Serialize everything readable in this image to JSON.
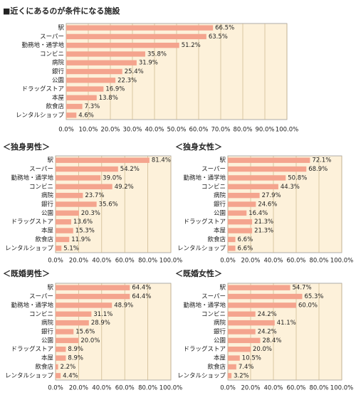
{
  "chart_data": [
    {
      "type": "bar",
      "orientation": "horizontal",
      "title": "■近くにあるのが条件になる施設",
      "color": "#f4a48e",
      "categories": [
        "駅",
        "スーパー",
        "勤務地・通学地",
        "コンビニ",
        "病院",
        "銀行",
        "公園",
        "ドラッグストア",
        "本屋",
        "飲食店",
        "レンタルショップ"
      ],
      "values": [
        66.5,
        63.5,
        51.2,
        35.8,
        31.9,
        25.4,
        22.3,
        16.9,
        13.8,
        7.3,
        4.6
      ],
      "value_labels": [
        "66.5%",
        "63.5%",
        "51.2%",
        "35.8%",
        "31.9%",
        "25.4%",
        "22.3%",
        "16.9%",
        "13.8%",
        "7.3%",
        "4.6%"
      ],
      "xlim": [
        0,
        100
      ],
      "xticks": [
        {
          "value": 0,
          "label": "0.0%"
        },
        {
          "value": 10,
          "label": "10.0%"
        },
        {
          "value": 20,
          "label": "20.0%"
        },
        {
          "value": 30,
          "label": "30.0%"
        },
        {
          "value": 40,
          "label": "40.0%"
        },
        {
          "value": 50,
          "label": "50.0%"
        },
        {
          "value": 60,
          "label": "60.0%"
        },
        {
          "value": 70,
          "label": "70.0%"
        },
        {
          "value": 80,
          "label": "80.0%"
        },
        {
          "value": 90,
          "label": "90.0%"
        },
        {
          "value": 100,
          "label": "100.0%"
        }
      ],
      "grid": true
    },
    {
      "type": "bar",
      "orientation": "horizontal",
      "title": "＜独身男性＞",
      "color": "#f4a48e",
      "categories": [
        "駅",
        "スーパー",
        "勤務地・通学地",
        "コンビニ",
        "病院",
        "銀行",
        "公園",
        "ドラッグストア",
        "本屋",
        "飲食店",
        "レンタルショップ"
      ],
      "values": [
        81.4,
        54.2,
        39.0,
        49.2,
        23.7,
        35.6,
        20.3,
        13.6,
        15.3,
        11.9,
        5.1
      ],
      "value_labels": [
        "81.4%",
        "54.2%",
        "39.0%",
        "49.2%",
        "23.7%",
        "35.6%",
        "20.3%",
        "13.6%",
        "15.3%",
        "11.9%",
        "5.1%"
      ],
      "xlim": [
        0,
        100
      ],
      "xticks": [
        {
          "value": 0,
          "label": "0.0%"
        },
        {
          "value": 20,
          "label": "20.0%"
        },
        {
          "value": 40,
          "label": "40.0%"
        },
        {
          "value": 60,
          "label": "60.0%"
        },
        {
          "value": 80,
          "label": "80.0%"
        },
        {
          "value": 100,
          "label": "100.0%"
        }
      ],
      "grid": true
    },
    {
      "type": "bar",
      "orientation": "horizontal",
      "title": "＜独身女性＞",
      "color": "#f4a48e",
      "categories": [
        "駅",
        "スーパー",
        "勤務地・通学地",
        "コンビニ",
        "病院",
        "銀行",
        "公園",
        "ドラッグストア",
        "本屋",
        "飲食店",
        "レンタルショップ"
      ],
      "values": [
        72.1,
        68.9,
        50.8,
        44.3,
        27.9,
        24.6,
        16.4,
        21.3,
        21.3,
        6.6,
        6.6
      ],
      "value_labels": [
        "72.1%",
        "68.9%",
        "50.8%",
        "44.3%",
        "27.9%",
        "24.6%",
        "16.4%",
        "21.3%",
        "21.3%",
        "6.6%",
        "6.6%"
      ],
      "xlim": [
        0,
        100
      ],
      "xticks": [
        {
          "value": 0,
          "label": "0.0%"
        },
        {
          "value": 20,
          "label": "20.0%"
        },
        {
          "value": 40,
          "label": "40.0%"
        },
        {
          "value": 60,
          "label": "60.0%"
        },
        {
          "value": 80,
          "label": "80.0%"
        },
        {
          "value": 100,
          "label": "100.0%"
        }
      ],
      "grid": true
    },
    {
      "type": "bar",
      "orientation": "horizontal",
      "title": "＜既婚男性＞",
      "color": "#f4a48e",
      "categories": [
        "駅",
        "スーパー",
        "勤務地・通学地",
        "コンビニ",
        "病院",
        "銀行",
        "公園",
        "ドラッグストア",
        "本屋",
        "飲食店",
        "レンタルショップ"
      ],
      "values": [
        64.4,
        64.4,
        48.9,
        31.1,
        28.9,
        15.6,
        20.0,
        8.9,
        8.9,
        2.2,
        4.4
      ],
      "value_labels": [
        "64.4%",
        "64.4%",
        "48.9%",
        "31.1%",
        "28.9%",
        "15.6%",
        "20.0%",
        "8.9%",
        "8.9%",
        "2.2%",
        "4.4%"
      ],
      "xlim": [
        0,
        100
      ],
      "xticks": [
        {
          "value": 0,
          "label": "0.0%"
        },
        {
          "value": 20,
          "label": "20.0%"
        },
        {
          "value": 40,
          "label": "40.0%"
        },
        {
          "value": 60,
          "label": "60.0%"
        },
        {
          "value": 80,
          "label": "80.0%"
        },
        {
          "value": 100,
          "label": "100.0%"
        }
      ],
      "grid": true
    },
    {
      "type": "bar",
      "orientation": "horizontal",
      "title": "＜既婚女性＞",
      "color": "#f4a48e",
      "categories": [
        "駅",
        "スーパー",
        "勤務地・通学地",
        "コンビニ",
        "病院",
        "銀行",
        "公園",
        "ドラッグストア",
        "本屋",
        "飲食店",
        "レンタルショップ"
      ],
      "values": [
        54.7,
        65.3,
        60.0,
        24.2,
        41.1,
        24.2,
        28.4,
        20.0,
        10.5,
        7.4,
        3.2
      ],
      "value_labels": [
        "54.7%",
        "65.3%",
        "60.0%",
        "24.2%",
        "41.1%",
        "24.2%",
        "28.4%",
        "20.0%",
        "10.5%",
        "7.4%",
        "3.2%"
      ],
      "xlim": [
        0,
        100
      ],
      "xticks": [
        {
          "value": 0,
          "label": "0.0%"
        },
        {
          "value": 20,
          "label": "20.0%"
        },
        {
          "value": 40,
          "label": "40.0%"
        },
        {
          "value": 60,
          "label": "60.0%"
        },
        {
          "value": 80,
          "label": "80.0%"
        },
        {
          "value": 100,
          "label": "100.0%"
        }
      ],
      "grid": true
    }
  ]
}
